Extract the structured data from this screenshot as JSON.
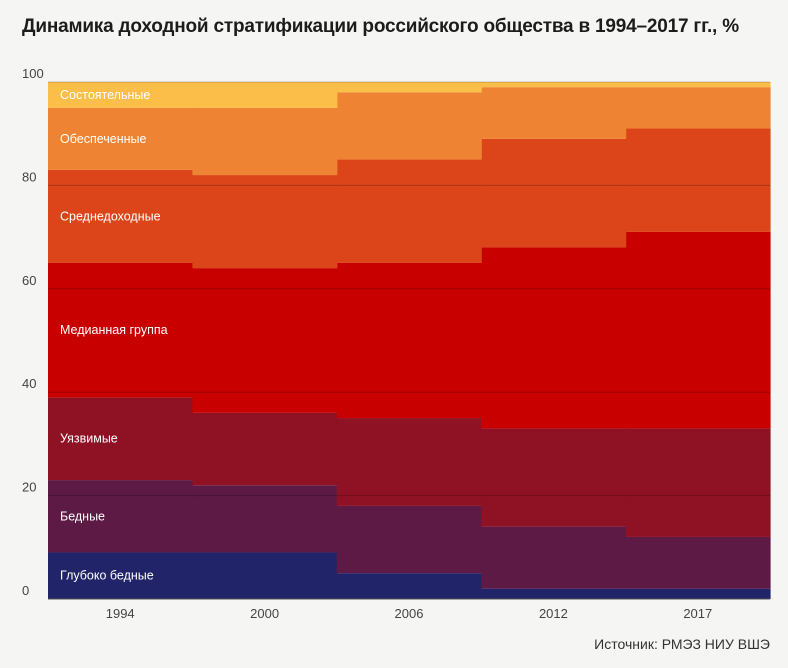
{
  "title": "Динамика доходной стратификации российского общества в 1994–2017 гг., %",
  "source": "Источник: РМЭЗ НИУ ВШЭ",
  "chart_data": {
    "type": "area",
    "subtype": "stacked-step-100",
    "ylim": [
      0,
      100
    ],
    "yticks": [
      0,
      20,
      40,
      60,
      80,
      100
    ],
    "grid": true,
    "categories": [
      "1994",
      "2000",
      "2006",
      "2012",
      "2017"
    ],
    "series": [
      {
        "name": "Глубоко бедные",
        "color": "#22246a",
        "values": [
          9,
          9,
          5,
          2,
          2
        ]
      },
      {
        "name": "Бедные",
        "color": "#5c1a45",
        "values": [
          14,
          13,
          13,
          12,
          10
        ]
      },
      {
        "name": "Уязвимые",
        "color": "#8f1124",
        "values": [
          16,
          14,
          17,
          19,
          21
        ]
      },
      {
        "name": "Медианная группа",
        "color": "#c90000",
        "values": [
          26,
          28,
          30,
          35,
          38
        ]
      },
      {
        "name": "Среднедоходные",
        "color": "#dc4519",
        "values": [
          18,
          18,
          20,
          21,
          20
        ]
      },
      {
        "name": "Обеспеченные",
        "color": "#ee8433",
        "values": [
          12,
          13,
          13,
          10,
          8
        ]
      },
      {
        "name": "Состоятельные",
        "color": "#fbbe48",
        "values": [
          5,
          5,
          2,
          1,
          1
        ]
      }
    ]
  }
}
